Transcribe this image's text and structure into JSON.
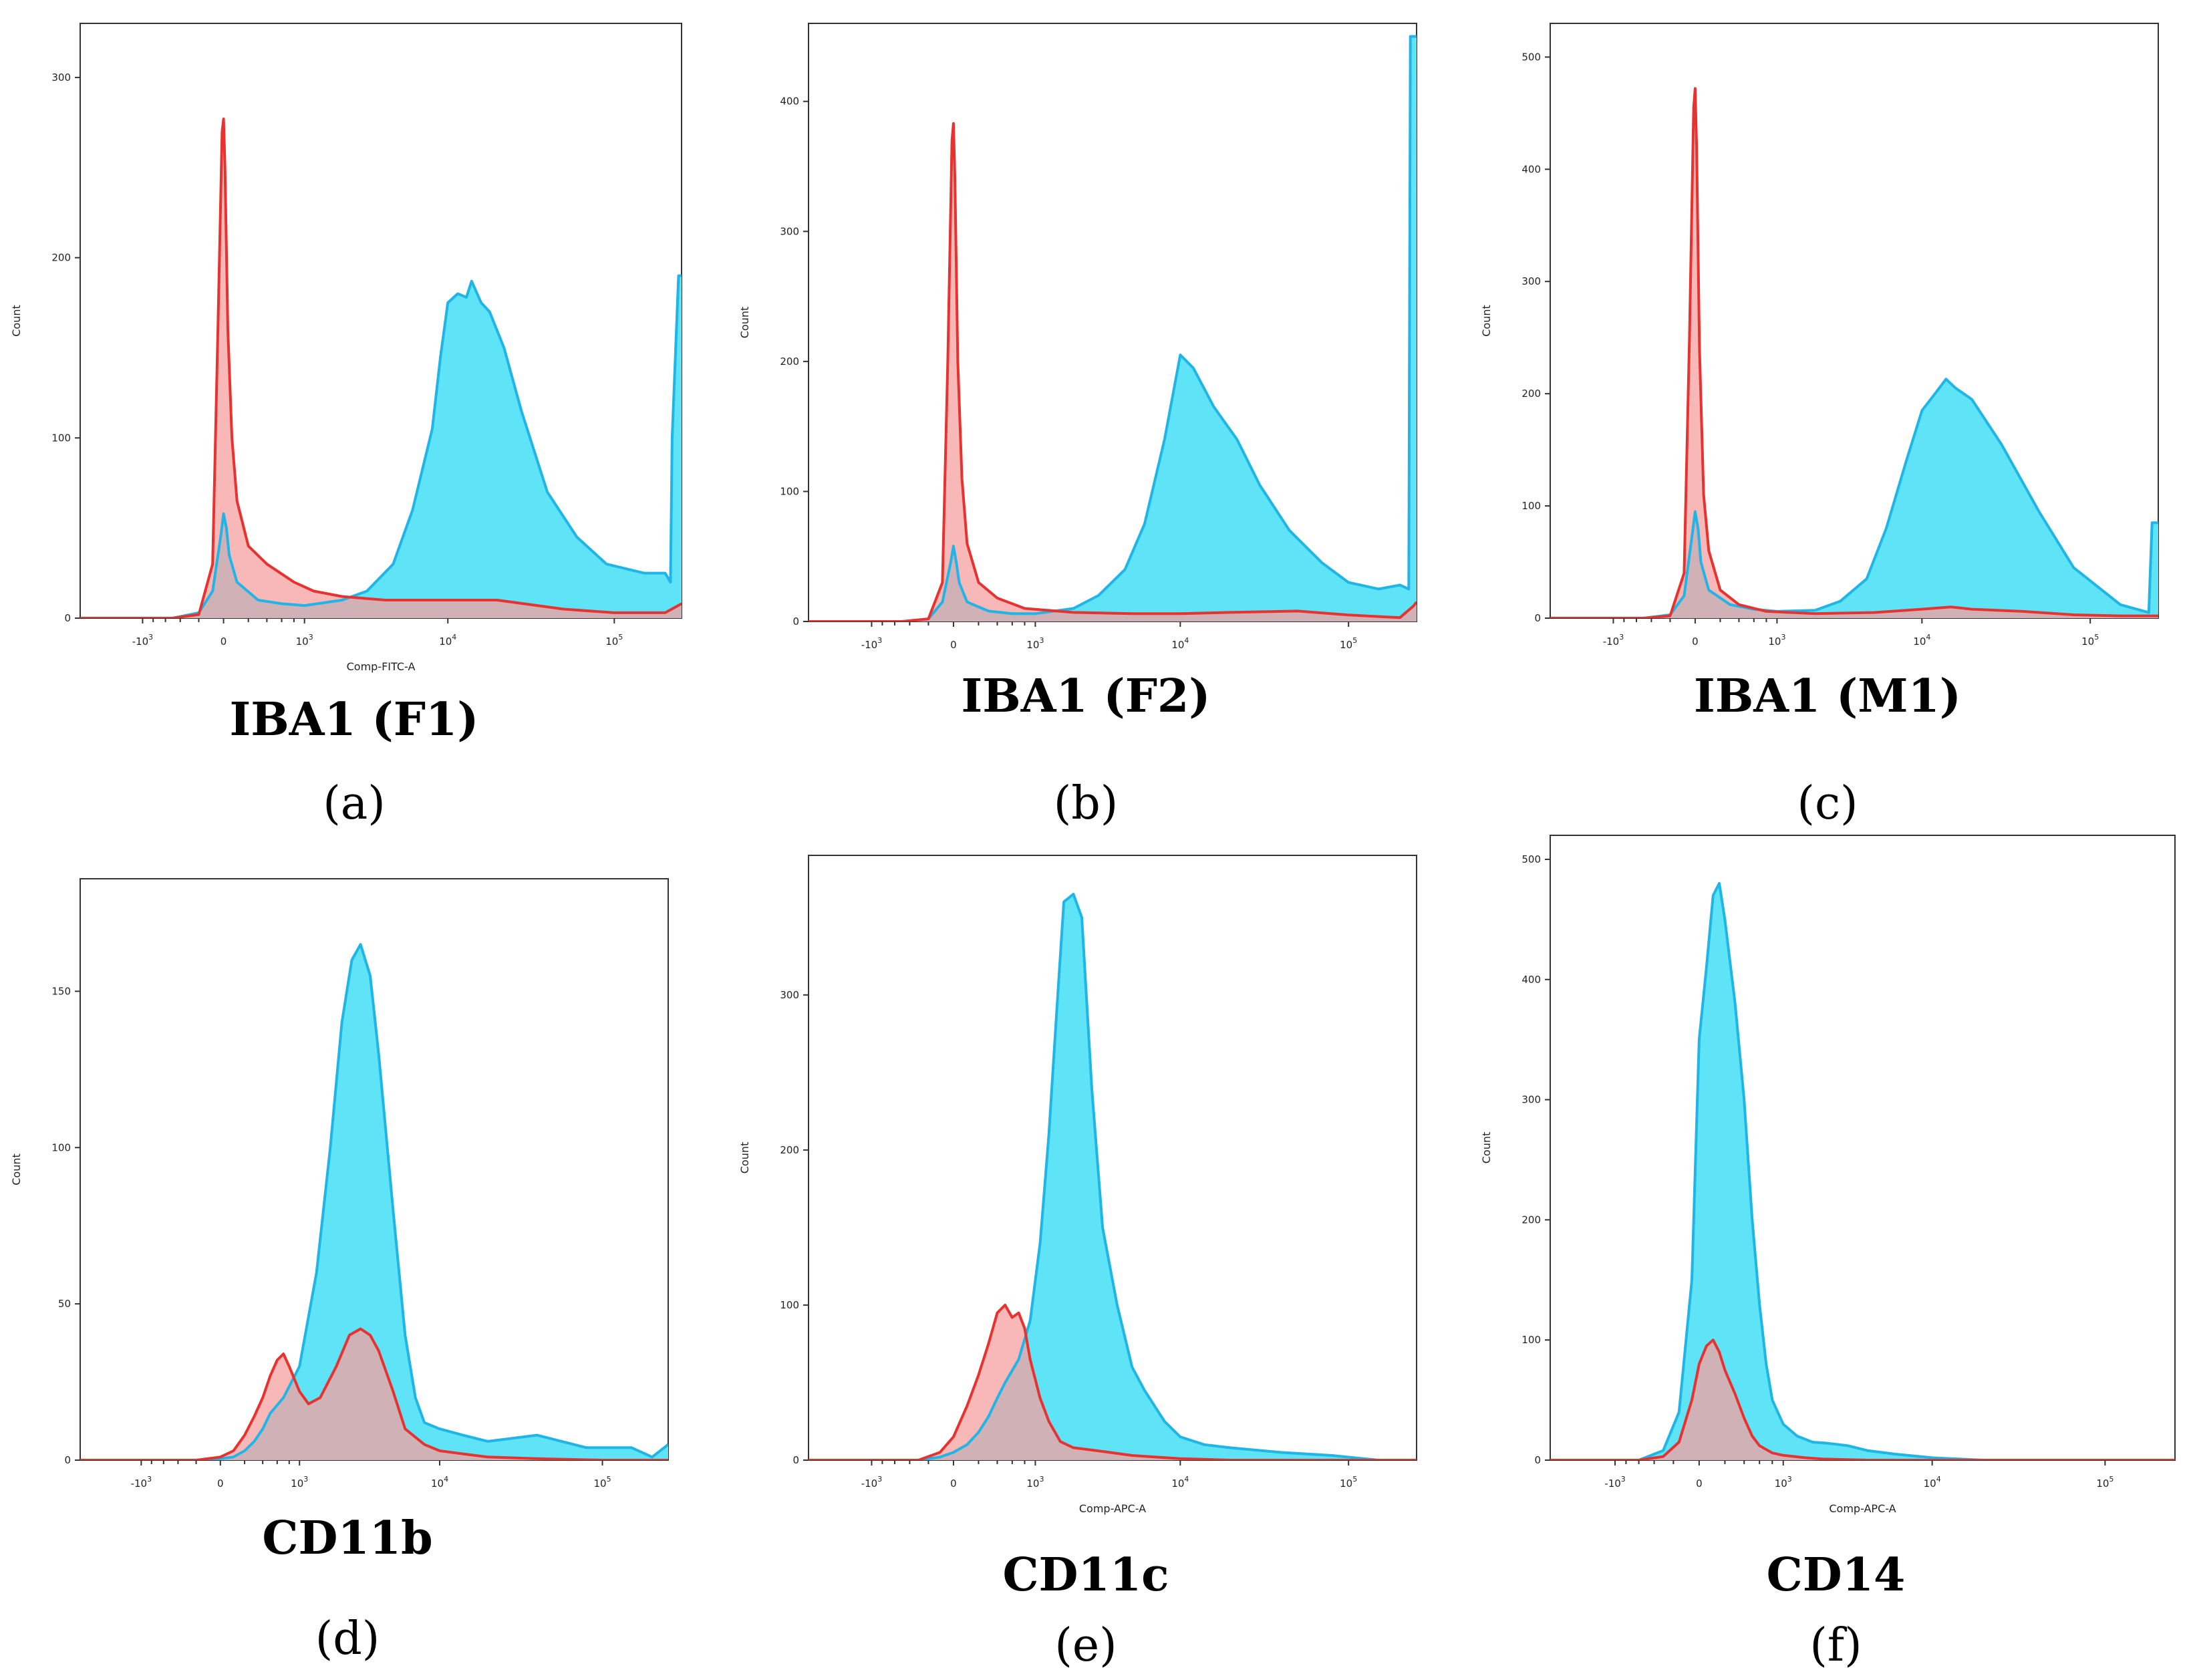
{
  "figure": {
    "panels": [
      {
        "id": "a",
        "title": "IBA1 (F1)",
        "letter": "(a)"
      },
      {
        "id": "b",
        "title": "IBA1 (F2)",
        "letter": "(b)"
      },
      {
        "id": "c",
        "title": "IBA1 (M1)",
        "letter": "(c)"
      },
      {
        "id": "d",
        "title": "CD11b",
        "letter": "(d)"
      },
      {
        "id": "e",
        "title": "CD11c",
        "letter": "(e)"
      },
      {
        "id": "f",
        "title": "CD14",
        "letter": "(f)"
      }
    ]
  },
  "colors": {
    "test_fill": "#5ee3f7",
    "test_line": "#1fb5e6",
    "control_fill": "#f5a0a0",
    "control_line": "#e8322f",
    "overlap": "#c294a8"
  },
  "chart_data": [
    {
      "type": "area",
      "panel": "a",
      "title": "IBA1 (F1)",
      "ylabel": "Count",
      "xlabel": "Comp-FITC-A",
      "xscale": "biexponential",
      "xlim": [
        -3000,
        250000
      ],
      "ylim": [
        0,
        330
      ],
      "xticks": [
        -1000,
        0,
        1000,
        10000,
        100000
      ],
      "xtick_labels": [
        "-10^3",
        "0",
        "10^3",
        "10^4",
        "10^5"
      ],
      "yticks": [
        0,
        100,
        200,
        300
      ],
      "series": [
        {
          "role": "test",
          "x": [
            -3000,
            -500,
            -200,
            -80,
            -20,
            0,
            20,
            40,
            100,
            300,
            600,
            1000,
            2000,
            3000,
            4500,
            6000,
            8000,
            9000,
            10000,
            11500,
            13000,
            14000,
            16000,
            18000,
            22000,
            28000,
            40000,
            60000,
            90000,
            150000,
            200000,
            215000,
            220000,
            240000,
            250000
          ],
          "y": [
            0,
            0,
            3,
            15,
            45,
            58,
            50,
            35,
            20,
            10,
            8,
            7,
            10,
            15,
            30,
            60,
            105,
            145,
            175,
            180,
            178,
            187,
            175,
            170,
            150,
            115,
            70,
            45,
            30,
            25,
            25,
            20,
            100,
            190,
            190
          ]
        },
        {
          "role": "control",
          "x": [
            -3000,
            -500,
            -200,
            -80,
            -40,
            -10,
            0,
            10,
            30,
            60,
            100,
            200,
            400,
            800,
            1200,
            2000,
            4000,
            8000,
            20000,
            50000,
            100000,
            200000,
            250000
          ],
          "y": [
            0,
            0,
            2,
            30,
            160,
            270,
            277,
            250,
            160,
            100,
            65,
            40,
            30,
            20,
            15,
            12,
            10,
            10,
            10,
            5,
            3,
            3,
            8
          ]
        }
      ]
    },
    {
      "type": "area",
      "panel": "b",
      "title": "IBA1 (F2)",
      "ylabel": "Count",
      "xlabel": "",
      "xscale": "biexponential",
      "xlim": [
        -3000,
        250000
      ],
      "ylim": [
        0,
        460
      ],
      "xticks": [
        -1000,
        0,
        1000,
        10000,
        100000
      ],
      "xtick_labels": [
        "-10^3",
        "0",
        "10^3",
        "10^4",
        "10^5"
      ],
      "yticks": [
        0,
        100,
        200,
        300,
        400
      ],
      "series": [
        {
          "role": "test",
          "x": [
            -3000,
            -500,
            -200,
            -80,
            -20,
            0,
            20,
            40,
            100,
            300,
            600,
            1000,
            2000,
            3000,
            4500,
            6000,
            8000,
            10000,
            12000,
            16000,
            22000,
            30000,
            45000,
            70000,
            100000,
            150000,
            200000,
            225000,
            230000,
            250000
          ],
          "y": [
            0,
            0,
            2,
            15,
            45,
            58,
            45,
            30,
            15,
            8,
            6,
            6,
            10,
            20,
            40,
            75,
            140,
            205,
            195,
            165,
            140,
            105,
            70,
            45,
            30,
            25,
            28,
            25,
            450,
            450
          ]
        },
        {
          "role": "control",
          "x": [
            -3000,
            -500,
            -200,
            -80,
            -40,
            -10,
            0,
            10,
            30,
            60,
            100,
            200,
            400,
            800,
            2000,
            5000,
            10000,
            20000,
            50000,
            100000,
            200000,
            240000,
            250000
          ],
          "y": [
            0,
            0,
            2,
            30,
            200,
            370,
            383,
            340,
            200,
            110,
            60,
            30,
            18,
            10,
            7,
            6,
            6,
            7,
            8,
            5,
            3,
            12,
            15
          ]
        }
      ]
    },
    {
      "type": "area",
      "panel": "c",
      "title": "IBA1 (M1)",
      "ylabel": "Count",
      "xlabel": "",
      "xscale": "biexponential",
      "xlim": [
        -3000,
        250000
      ],
      "ylim": [
        0,
        530
      ],
      "xticks": [
        -1000,
        0,
        1000,
        10000,
        100000
      ],
      "xtick_labels": [
        "-10^3",
        "0",
        "10^3",
        "10^4",
        "10^5"
      ],
      "yticks": [
        0,
        100,
        200,
        300,
        400,
        500
      ],
      "series": [
        {
          "role": "test",
          "x": [
            -3000,
            -500,
            -200,
            -80,
            -20,
            0,
            20,
            40,
            100,
            300,
            600,
            1000,
            2000,
            3000,
            4500,
            6000,
            8000,
            10000,
            12000,
            14000,
            16000,
            20000,
            30000,
            50000,
            80000,
            150000,
            220000,
            230000,
            250000
          ],
          "y": [
            0,
            0,
            3,
            20,
            75,
            95,
            80,
            50,
            25,
            12,
            8,
            6,
            7,
            15,
            35,
            80,
            140,
            185,
            200,
            213,
            205,
            195,
            155,
            95,
            45,
            12,
            5,
            85,
            85
          ]
        },
        {
          "role": "control",
          "x": [
            -3000,
            -500,
            -200,
            -80,
            -40,
            -10,
            0,
            10,
            30,
            60,
            100,
            200,
            400,
            800,
            2000,
            5000,
            10000,
            15000,
            20000,
            40000,
            80000,
            150000,
            250000
          ],
          "y": [
            0,
            0,
            2,
            40,
            250,
            455,
            472,
            420,
            240,
            110,
            60,
            25,
            12,
            6,
            4,
            5,
            8,
            10,
            8,
            6,
            3,
            2,
            2
          ]
        }
      ]
    },
    {
      "type": "area",
      "panel": "d",
      "title": "CD11b",
      "ylabel": "Count",
      "xlabel": "",
      "xscale": "biexponential",
      "xlim": [
        -3000,
        250000
      ],
      "ylim": [
        0,
        186
      ],
      "xticks": [
        -1000,
        0,
        1000,
        10000,
        100000
      ],
      "xtick_labels": [
        "-10^3",
        "0",
        "10^3",
        "10^4",
        "10^5"
      ],
      "yticks": [
        0,
        50,
        100,
        150
      ],
      "series": [
        {
          "role": "test",
          "x": [
            -3000,
            -200,
            0,
            100,
            200,
            300,
            400,
            500,
            700,
            1000,
            1400,
            1800,
            2200,
            2600,
            3000,
            3500,
            4000,
            5000,
            6000,
            7000,
            8000,
            10000,
            14000,
            20000,
            40000,
            80000,
            150000,
            200000,
            250000
          ],
          "y": [
            0,
            0,
            0.5,
            1,
            3,
            6,
            10,
            15,
            20,
            30,
            60,
            100,
            140,
            160,
            165,
            155,
            130,
            80,
            40,
            20,
            12,
            10,
            8,
            6,
            8,
            4,
            4,
            1,
            5
          ]
        },
        {
          "role": "control",
          "x": [
            -3000,
            -200,
            0,
            100,
            200,
            300,
            400,
            500,
            600,
            700,
            800,
            1000,
            1200,
            1500,
            2000,
            2500,
            3000,
            3500,
            4000,
            5000,
            6000,
            8000,
            10000,
            14000,
            20000,
            40000,
            100000,
            250000
          ],
          "y": [
            0,
            0,
            1,
            3,
            8,
            14,
            20,
            27,
            32,
            34,
            30,
            22,
            18,
            20,
            30,
            40,
            42,
            40,
            35,
            22,
            10,
            5,
            3,
            2,
            1,
            0.5,
            0,
            0
          ]
        }
      ]
    },
    {
      "type": "area",
      "panel": "e",
      "title": "CD11c",
      "ylabel": "Count",
      "xlabel": "Comp-APC-A",
      "xscale": "biexponential",
      "xlim": [
        -3000,
        250000
      ],
      "ylim": [
        0,
        390
      ],
      "xticks": [
        -1000,
        0,
        1000,
        10000,
        100000
      ],
      "xtick_labels": [
        "-10^3",
        "0",
        "10^3",
        "10^4",
        "10^5"
      ],
      "yticks": [
        0,
        100,
        200,
        300
      ],
      "series": [
        {
          "role": "test",
          "x": [
            -3000,
            -300,
            -100,
            0,
            100,
            200,
            300,
            400,
            500,
            700,
            900,
            1100,
            1300,
            1500,
            1700,
            2000,
            2300,
            2700,
            3200,
            4000,
            5000,
            6000,
            8000,
            10000,
            14000,
            20000,
            40000,
            80000,
            150000,
            250000
          ],
          "y": [
            0,
            0,
            2,
            5,
            10,
            18,
            28,
            40,
            50,
            65,
            90,
            140,
            210,
            290,
            360,
            365,
            350,
            240,
            150,
            100,
            60,
            45,
            25,
            15,
            10,
            8,
            5,
            3,
            0,
            0
          ]
        },
        {
          "role": "control",
          "x": [
            -3000,
            -300,
            -100,
            0,
            100,
            200,
            300,
            400,
            500,
            600,
            700,
            800,
            900,
            1100,
            1300,
            1600,
            2000,
            3000,
            5000,
            10000,
            20000,
            250000
          ],
          "y": [
            0,
            0,
            5,
            15,
            35,
            55,
            75,
            95,
            100,
            92,
            95,
            85,
            65,
            40,
            25,
            12,
            8,
            6,
            3,
            1,
            0,
            0
          ]
        }
      ]
    },
    {
      "type": "area",
      "panel": "f",
      "title": "CD14",
      "ylabel": "Count",
      "xlabel": "Comp-APC-A",
      "xscale": "biexponential",
      "xlim": [
        -3000,
        250000
      ],
      "ylim": [
        0,
        520
      ],
      "xticks": [
        -1000,
        0,
        1000,
        10000,
        100000
      ],
      "xtick_labels": [
        "-10^3",
        "0",
        "10^3",
        "10^4",
        "10^5"
      ],
      "yticks": [
        0,
        100,
        200,
        300,
        400,
        500
      ],
      "series": [
        {
          "role": "test",
          "x": [
            -3000,
            -600,
            -300,
            -150,
            -50,
            0,
            50,
            100,
            150,
            200,
            300,
            400,
            500,
            600,
            700,
            800,
            1000,
            1300,
            1700,
            2200,
            3000,
            4000,
            6000,
            10000,
            20000,
            250000
          ],
          "y": [
            0,
            0,
            8,
            40,
            150,
            350,
            410,
            470,
            480,
            450,
            380,
            300,
            200,
            130,
            80,
            50,
            30,
            20,
            15,
            14,
            12,
            8,
            5,
            2,
            0,
            0
          ]
        },
        {
          "role": "control",
          "x": [
            -3000,
            -600,
            -300,
            -150,
            -50,
            0,
            50,
            100,
            150,
            200,
            300,
            400,
            500,
            600,
            800,
            1000,
            1500,
            2000,
            4000,
            250000
          ],
          "y": [
            0,
            0,
            3,
            15,
            50,
            80,
            95,
            100,
            90,
            75,
            55,
            35,
            20,
            12,
            6,
            4,
            2,
            1,
            0,
            0
          ]
        }
      ]
    }
  ]
}
